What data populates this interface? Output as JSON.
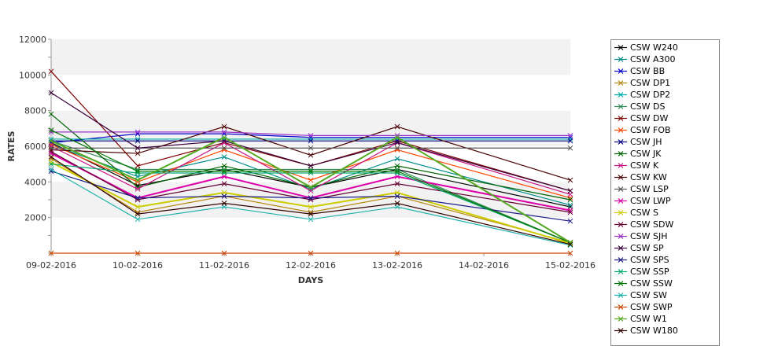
{
  "chart_data": {
    "type": "line",
    "title": "",
    "xlabel": "DAYS",
    "ylabel": "RATES",
    "ylim": [
      0,
      12000
    ],
    "yticks": [
      2000,
      4000,
      6000,
      8000,
      10000,
      12000
    ],
    "categories": [
      "09-02-2016",
      "10-02-2016",
      "11-02-2016",
      "12-02-2016",
      "13-02-2016",
      "14-02-2016",
      "15-02-2016"
    ],
    "grid": "alternating horizontal bands",
    "legend_position": "right",
    "series": [
      {
        "name": "CSW  W240",
        "color": "#000000",
        "points": [
          [
            0,
            6200
          ],
          [
            1,
            3800
          ],
          [
            2,
            4700
          ],
          [
            3,
            3700
          ],
          [
            4,
            4700
          ],
          [
            6,
            2600
          ]
        ]
      },
      {
        "name": "CSW A300",
        "color": "#008b8b",
        "points": [
          [
            0,
            6100
          ],
          [
            1,
            4300
          ],
          [
            2,
            5400
          ],
          [
            3,
            3600
          ],
          [
            4,
            5300
          ],
          [
            6,
            2700
          ]
        ]
      },
      {
        "name": "CSW BB",
        "color": "#0000cc",
        "points": [
          [
            0,
            6200
          ],
          [
            1,
            6700
          ],
          [
            2,
            6700
          ],
          [
            3,
            6500
          ],
          [
            4,
            6500
          ],
          [
            6,
            6500
          ]
        ]
      },
      {
        "name": "CSW DP1",
        "color": "#b8860b",
        "points": [
          [
            0,
            5300
          ],
          [
            1,
            2300
          ],
          [
            2,
            3200
          ],
          [
            3,
            2300
          ],
          [
            4,
            3200
          ],
          [
            6,
            600
          ]
        ]
      },
      {
        "name": "CSW DP2",
        "color": "#00aaaa",
        "points": [
          [
            0,
            6400
          ],
          [
            1,
            6400
          ],
          [
            2,
            6400
          ],
          [
            3,
            6400
          ],
          [
            4,
            6400
          ],
          [
            6,
            6400
          ]
        ]
      },
      {
        "name": "CSW DS",
        "color": "#2e8b57",
        "points": [
          [
            0,
            6300
          ],
          [
            1,
            4700
          ],
          [
            2,
            4700
          ],
          [
            3,
            4700
          ],
          [
            4,
            4700
          ],
          [
            6,
            600
          ]
        ]
      },
      {
        "name": "CSW DW",
        "color": "#800000",
        "points": [
          [
            0,
            10200
          ],
          [
            1,
            4900
          ],
          [
            2,
            6200
          ],
          [
            3,
            4900
          ],
          [
            4,
            6300
          ],
          [
            6,
            3500
          ]
        ]
      },
      {
        "name": "CSW FOB",
        "color": "#ff4500",
        "points": [
          [
            0,
            6100
          ],
          [
            1,
            4000
          ],
          [
            2,
            5800
          ],
          [
            3,
            4100
          ],
          [
            4,
            5800
          ],
          [
            6,
            3100
          ]
        ]
      },
      {
        "name": "CSW JH",
        "color": "#000080",
        "points": [
          [
            0,
            6300
          ],
          [
            1,
            6300
          ],
          [
            2,
            6300
          ],
          [
            3,
            6300
          ],
          [
            4,
            6300
          ],
          [
            6,
            6300
          ]
        ]
      },
      {
        "name": "CSW JK",
        "color": "#006400",
        "points": [
          [
            0,
            7800
          ],
          [
            1,
            3700
          ],
          [
            2,
            4900
          ],
          [
            3,
            3700
          ],
          [
            4,
            4900
          ],
          [
            6,
            3000
          ]
        ]
      },
      {
        "name": "CSW K",
        "color": "#c71585",
        "points": [
          [
            0,
            6000
          ],
          [
            1,
            3600
          ],
          [
            2,
            6200
          ],
          [
            3,
            3500
          ],
          [
            4,
            6200
          ],
          [
            6,
            3300
          ]
        ]
      },
      {
        "name": "CSW KW",
        "color": "#4b0000",
        "points": [
          [
            0,
            5800
          ],
          [
            1,
            5600
          ],
          [
            2,
            7100
          ],
          [
            3,
            5500
          ],
          [
            4,
            7100
          ],
          [
            6,
            4100
          ]
        ]
      },
      {
        "name": "CSW LSP",
        "color": "#555555",
        "points": [
          [
            0,
            5900
          ],
          [
            1,
            5900
          ],
          [
            2,
            5900
          ],
          [
            3,
            5900
          ],
          [
            4,
            5900
          ],
          [
            6,
            5900
          ]
        ]
      },
      {
        "name": "CSW LWP",
        "color": "#dd00aa",
        "points": [
          [
            0,
            5600
          ],
          [
            1,
            3100
          ],
          [
            2,
            4300
          ],
          [
            3,
            3100
          ],
          [
            4,
            4300
          ],
          [
            6,
            2400
          ]
        ]
      },
      {
        "name": "CSW S",
        "color": "#cccc00",
        "points": [
          [
            0,
            5100
          ],
          [
            1,
            2600
          ],
          [
            2,
            3400
          ],
          [
            3,
            2600
          ],
          [
            4,
            3400
          ],
          [
            6,
            550
          ]
        ]
      },
      {
        "name": "CSW SDW",
        "color": "#660033",
        "points": [
          [
            0,
            5700
          ],
          [
            1,
            3000
          ],
          [
            2,
            3900
          ],
          [
            3,
            3000
          ],
          [
            4,
            3900
          ],
          [
            6,
            2300
          ]
        ]
      },
      {
        "name": "CSW SJH",
        "color": "#9932cc",
        "points": [
          [
            0,
            6800
          ],
          [
            1,
            6800
          ],
          [
            2,
            6800
          ],
          [
            3,
            6600
          ],
          [
            4,
            6600
          ],
          [
            6,
            6600
          ]
        ]
      },
      {
        "name": "CSW SP",
        "color": "#3a003a",
        "points": [
          [
            0,
            9000
          ],
          [
            1,
            5900
          ],
          [
            2,
            6300
          ],
          [
            3,
            4900
          ],
          [
            4,
            6200
          ],
          [
            6,
            3500
          ]
        ]
      },
      {
        "name": "CSW SPS",
        "color": "#1a1a8a",
        "points": [
          [
            0,
            4600
          ],
          [
            1,
            3100
          ],
          [
            2,
            3200
          ],
          [
            3,
            3100
          ],
          [
            4,
            3200
          ],
          [
            6,
            1800
          ]
        ]
      },
      {
        "name": "CSW SSP",
        "color": "#00a86b",
        "points": [
          [
            0,
            5000
          ],
          [
            1,
            4500
          ],
          [
            2,
            4500
          ],
          [
            3,
            4500
          ],
          [
            4,
            4500
          ],
          [
            6,
            600
          ]
        ]
      },
      {
        "name": "CSW SSW",
        "color": "#007700",
        "points": [
          [
            0,
            6900
          ],
          [
            1,
            4600
          ],
          [
            2,
            4600
          ],
          [
            3,
            4600
          ],
          [
            4,
            4600
          ],
          [
            6,
            600
          ]
        ]
      },
      {
        "name": "CSW SW",
        "color": "#20b2aa",
        "points": [
          [
            0,
            4700
          ],
          [
            1,
            1900
          ],
          [
            2,
            2600
          ],
          [
            3,
            1900
          ],
          [
            4,
            2600
          ],
          [
            6,
            450
          ]
        ]
      },
      {
        "name": "CSW SWP",
        "color": "#cc4400",
        "points": [
          [
            0,
            0
          ],
          [
            1,
            0
          ],
          [
            2,
            0
          ],
          [
            3,
            0
          ],
          [
            4,
            0
          ],
          [
            6,
            0
          ]
        ]
      },
      {
        "name": "CSW W1",
        "color": "#55aa22",
        "points": [
          [
            0,
            6300
          ],
          [
            1,
            4100
          ],
          [
            2,
            6500
          ],
          [
            3,
            3700
          ],
          [
            4,
            6500
          ],
          [
            6,
            600
          ]
        ]
      },
      {
        "name": "CSW W180",
        "color": "#330000",
        "points": [
          [
            0,
            5400
          ],
          [
            1,
            2200
          ],
          [
            2,
            2800
          ],
          [
            3,
            2200
          ],
          [
            4,
            2800
          ],
          [
            6,
            500
          ]
        ]
      }
    ]
  }
}
